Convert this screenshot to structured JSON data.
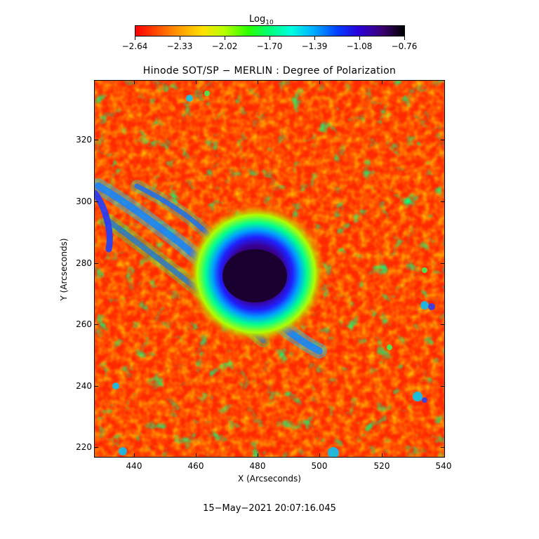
{
  "colorbar": {
    "title_main": "Log",
    "title_sub": "10",
    "ticks": [
      "−2.64",
      "−2.33",
      "−2.02",
      "−1.70",
      "−1.39",
      "−1.08",
      "−0.76"
    ],
    "colors": [
      "#ff0000",
      "#ff9a00",
      "#ffe000",
      "#2bff00",
      "#00ffe0",
      "#0040ff",
      "#3a0070",
      "#000000"
    ]
  },
  "title": "Hinode SOT/SP − MERLIN : Degree of Polarization",
  "axes": {
    "xlabel": "X (Arcseconds)",
    "ylabel": "Y (Arcseconds)",
    "xticks": [
      "440",
      "460",
      "480",
      "500",
      "520",
      "540"
    ],
    "yticks": [
      "320",
      "300",
      "280",
      "260",
      "240",
      "220"
    ],
    "xlim": [
      426,
      540
    ],
    "ylim": [
      217,
      339
    ]
  },
  "timestamp": "15−May−2021 20:07:16.045"
}
